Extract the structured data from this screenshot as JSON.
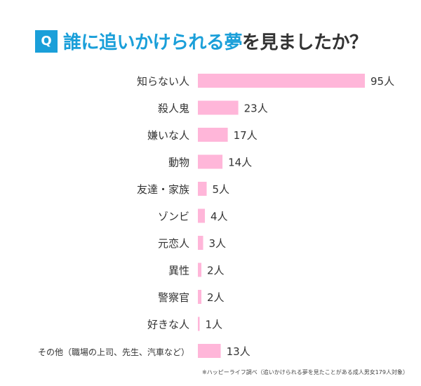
{
  "title": {
    "badge": "Q",
    "highlight": "誰に追いかけられる夢",
    "rest": "を見ましたか？"
  },
  "footnote": "※ハッピーライフ調べ（追いかけられる夢を見たことがある成人男女179人対象）",
  "colors": {
    "accent": "#1a9fd9",
    "bar": "#ffb6d9",
    "text": "#333333"
  },
  "chart_data": {
    "type": "bar",
    "orientation": "horizontal",
    "categories": [
      "知らない人",
      "殺人鬼",
      "嫌いな人",
      "動物",
      "友達・家族",
      "ゾンビ",
      "元恋人",
      "異性",
      "警察官",
      "好きな人",
      "その他（職場の上司、先生、汽車など）"
    ],
    "values": [
      95,
      23,
      17,
      14,
      5,
      4,
      3,
      2,
      2,
      1,
      13
    ],
    "value_labels": [
      "95人",
      "23人",
      "17人",
      "14人",
      "5人",
      "4人",
      "3人",
      "2人",
      "2人",
      "1人",
      "13人"
    ],
    "grid": false,
    "legend": "none"
  }
}
